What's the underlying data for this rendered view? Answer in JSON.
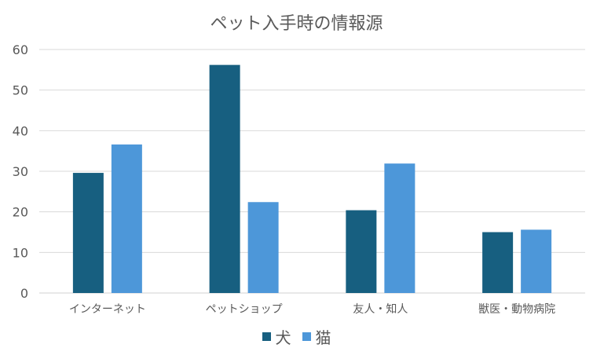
{
  "chart_data": {
    "type": "bar",
    "title": "ペット入手時の情報源",
    "categories": [
      "インターネット",
      "ペットショップ",
      "友人・知人",
      "獣医・動物病院"
    ],
    "series": [
      {
        "name": "犬",
        "values": [
          29.6,
          56.2,
          20.4,
          15.0
        ],
        "color": "#175F80"
      },
      {
        "name": "猫",
        "values": [
          36.6,
          22.4,
          31.9,
          15.6
        ],
        "color": "#4D97D9"
      }
    ],
    "ylim": [
      0,
      60
    ],
    "yticks": [
      0,
      10,
      20,
      30,
      40,
      50,
      60
    ],
    "grid": true,
    "legend_position": "bottom"
  }
}
